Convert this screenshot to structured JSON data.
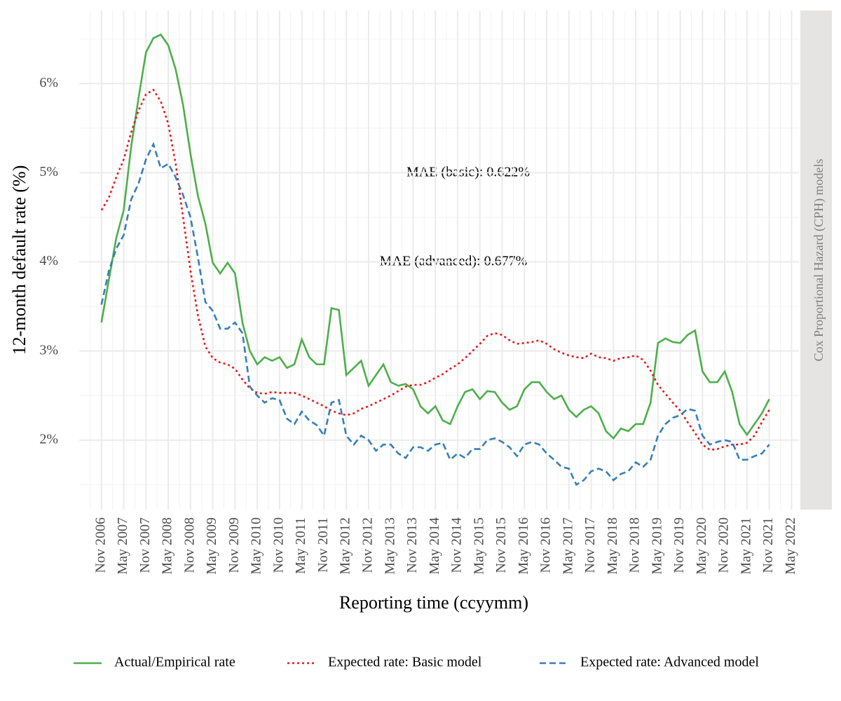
{
  "chart_data": {
    "type": "line",
    "x_label": "Reporting time (ccyymm)",
    "y_label": "12-month default rate (%)",
    "facet_label": "Cox Proportional Hazard (CPH) models",
    "annotations": [
      "MAE (basic): 0.622%",
      "MAE (advanced): 0.677%"
    ],
    "grid": true,
    "legend_position": "bottom",
    "xlim": [
      "2006-05",
      "2022-07"
    ],
    "xticks": [
      {
        "value": "2006-11",
        "label": "Nov 2006"
      },
      {
        "value": "2007-05",
        "label": "May 2007"
      },
      {
        "value": "2007-11",
        "label": "Nov 2007"
      },
      {
        "value": "2008-05",
        "label": "May 2008"
      },
      {
        "value": "2008-11",
        "label": "Nov 2008"
      },
      {
        "value": "2009-05",
        "label": "May 2009"
      },
      {
        "value": "2009-11",
        "label": "Nov 2009"
      },
      {
        "value": "2010-05",
        "label": "May 2010"
      },
      {
        "value": "2010-11",
        "label": "Nov 2010"
      },
      {
        "value": "2011-05",
        "label": "May 2011"
      },
      {
        "value": "2011-11",
        "label": "Nov 2011"
      },
      {
        "value": "2012-05",
        "label": "May 2012"
      },
      {
        "value": "2012-11",
        "label": "Nov 2012"
      },
      {
        "value": "2013-05",
        "label": "May 2013"
      },
      {
        "value": "2013-11",
        "label": "Nov 2013"
      },
      {
        "value": "2014-05",
        "label": "May 2014"
      },
      {
        "value": "2014-11",
        "label": "Nov 2014"
      },
      {
        "value": "2015-05",
        "label": "May 2015"
      },
      {
        "value": "2015-11",
        "label": "Nov 2015"
      },
      {
        "value": "2016-05",
        "label": "May 2016"
      },
      {
        "value": "2016-11",
        "label": "Nov 2016"
      },
      {
        "value": "2017-05",
        "label": "May 2017"
      },
      {
        "value": "2017-11",
        "label": "Nov 2017"
      },
      {
        "value": "2018-05",
        "label": "May 2018"
      },
      {
        "value": "2018-11",
        "label": "Nov 2018"
      },
      {
        "value": "2019-05",
        "label": "May 2019"
      },
      {
        "value": "2019-11",
        "label": "Nov 2019"
      },
      {
        "value": "2020-05",
        "label": "May 2020"
      },
      {
        "value": "2020-11",
        "label": "Nov 2020"
      },
      {
        "value": "2021-05",
        "label": "May 2021"
      },
      {
        "value": "2021-11",
        "label": "Nov 2021"
      },
      {
        "value": "2022-05",
        "label": "May 2022"
      }
    ],
    "ylim": [
      1.22,
      6.82
    ],
    "yticks": [
      {
        "value": 2,
        "label": "2%"
      },
      {
        "value": 3,
        "label": "3%"
      },
      {
        "value": 4,
        "label": "4%"
      },
      {
        "value": 5,
        "label": "5%"
      },
      {
        "value": 6,
        "label": "6%"
      }
    ],
    "x": [
      "2006-11",
      "2007-01",
      "2007-03",
      "2007-05",
      "2007-07",
      "2007-09",
      "2007-11",
      "2008-01",
      "2008-03",
      "2008-05",
      "2008-07",
      "2008-09",
      "2008-11",
      "2009-01",
      "2009-03",
      "2009-05",
      "2009-07",
      "2009-09",
      "2009-11",
      "2010-01",
      "2010-03",
      "2010-05",
      "2010-07",
      "2010-09",
      "2010-11",
      "2011-01",
      "2011-03",
      "2011-05",
      "2011-07",
      "2011-09",
      "2011-11",
      "2012-01",
      "2012-03",
      "2012-05",
      "2012-07",
      "2012-09",
      "2012-11",
      "2013-01",
      "2013-03",
      "2013-05",
      "2013-07",
      "2013-09",
      "2013-11",
      "2014-01",
      "2014-03",
      "2014-05",
      "2014-07",
      "2014-09",
      "2014-11",
      "2015-01",
      "2015-03",
      "2015-05",
      "2015-07",
      "2015-09",
      "2015-11",
      "2016-01",
      "2016-03",
      "2016-05",
      "2016-07",
      "2016-09",
      "2016-11",
      "2017-01",
      "2017-03",
      "2017-05",
      "2017-07",
      "2017-09",
      "2017-11",
      "2018-01",
      "2018-03",
      "2018-05",
      "2018-07",
      "2018-09",
      "2018-11",
      "2019-01",
      "2019-03",
      "2019-05",
      "2019-07",
      "2019-09",
      "2019-11",
      "2020-01",
      "2020-03",
      "2020-05",
      "2020-07",
      "2020-09",
      "2020-11",
      "2021-01",
      "2021-03",
      "2021-05",
      "2021-07",
      "2021-09",
      "2021-11"
    ],
    "series": [
      {
        "name": "Actual/Empirical rate",
        "color": "#4daf4a",
        "dash": "solid",
        "values": [
          3.32,
          3.8,
          4.27,
          4.58,
          5.29,
          5.84,
          6.35,
          6.51,
          6.55,
          6.43,
          6.16,
          5.76,
          5.21,
          4.74,
          4.43,
          3.99,
          3.87,
          3.99,
          3.87,
          3.32,
          3.0,
          2.85,
          2.93,
          2.89,
          2.93,
          2.81,
          2.85,
          3.13,
          2.93,
          2.85,
          2.85,
          3.48,
          3.46,
          2.73,
          2.81,
          2.89,
          2.61,
          2.73,
          2.85,
          2.65,
          2.61,
          2.63,
          2.57,
          2.38,
          2.3,
          2.38,
          2.22,
          2.18,
          2.38,
          2.54,
          2.57,
          2.46,
          2.55,
          2.54,
          2.42,
          2.34,
          2.38,
          2.57,
          2.65,
          2.65,
          2.54,
          2.46,
          2.5,
          2.34,
          2.26,
          2.34,
          2.38,
          2.3,
          2.1,
          2.02,
          2.13,
          2.1,
          2.18,
          2.18,
          2.42,
          3.09,
          3.14,
          3.1,
          3.09,
          3.18,
          3.23,
          2.77,
          2.65,
          2.65,
          2.77,
          2.54,
          2.18,
          2.06,
          2.18,
          2.3,
          2.46
        ]
      },
      {
        "name": "Expected rate: Basic model",
        "color": "#e41a1c",
        "dash": "dotted",
        "values": [
          4.58,
          4.72,
          4.95,
          5.15,
          5.45,
          5.7,
          5.88,
          5.93,
          5.8,
          5.55,
          5.1,
          4.5,
          3.9,
          3.4,
          3.05,
          2.92,
          2.87,
          2.85,
          2.8,
          2.68,
          2.58,
          2.53,
          2.52,
          2.54,
          2.53,
          2.53,
          2.53,
          2.5,
          2.46,
          2.42,
          2.38,
          2.33,
          2.3,
          2.28,
          2.3,
          2.35,
          2.38,
          2.42,
          2.46,
          2.5,
          2.55,
          2.6,
          2.62,
          2.62,
          2.65,
          2.7,
          2.74,
          2.8,
          2.85,
          2.92,
          3.0,
          3.08,
          3.17,
          3.2,
          3.18,
          3.12,
          3.08,
          3.09,
          3.1,
          3.12,
          3.08,
          3.02,
          2.98,
          2.95,
          2.93,
          2.92,
          2.97,
          2.93,
          2.92,
          2.89,
          2.92,
          2.93,
          2.95,
          2.9,
          2.78,
          2.62,
          2.52,
          2.42,
          2.33,
          2.2,
          2.08,
          1.95,
          1.89,
          1.9,
          1.93,
          1.95,
          1.95,
          1.97,
          2.05,
          2.2,
          2.34
        ]
      },
      {
        "name": "Expected rate: Advanced model",
        "color": "#377eb8",
        "dash": "dashed",
        "values": [
          3.52,
          3.9,
          4.15,
          4.3,
          4.7,
          4.88,
          5.15,
          5.32,
          5.05,
          5.1,
          4.95,
          4.75,
          4.5,
          4.05,
          3.55,
          3.45,
          3.25,
          3.25,
          3.32,
          3.2,
          2.6,
          2.5,
          2.42,
          2.47,
          2.45,
          2.24,
          2.18,
          2.32,
          2.22,
          2.17,
          2.05,
          2.42,
          2.45,
          2.05,
          1.95,
          2.05,
          2.0,
          1.88,
          1.95,
          1.95,
          1.85,
          1.8,
          1.92,
          1.92,
          1.88,
          1.95,
          1.97,
          1.78,
          1.85,
          1.8,
          1.9,
          1.9,
          2.0,
          2.02,
          1.98,
          1.92,
          1.82,
          1.95,
          1.98,
          1.95,
          1.85,
          1.78,
          1.7,
          1.68,
          1.5,
          1.55,
          1.65,
          1.68,
          1.65,
          1.55,
          1.62,
          1.65,
          1.75,
          1.7,
          1.78,
          2.05,
          2.18,
          2.25,
          2.28,
          2.35,
          2.33,
          2.05,
          1.95,
          1.98,
          2.0,
          1.98,
          1.78,
          1.78,
          1.82,
          1.85,
          1.95
        ]
      }
    ]
  }
}
